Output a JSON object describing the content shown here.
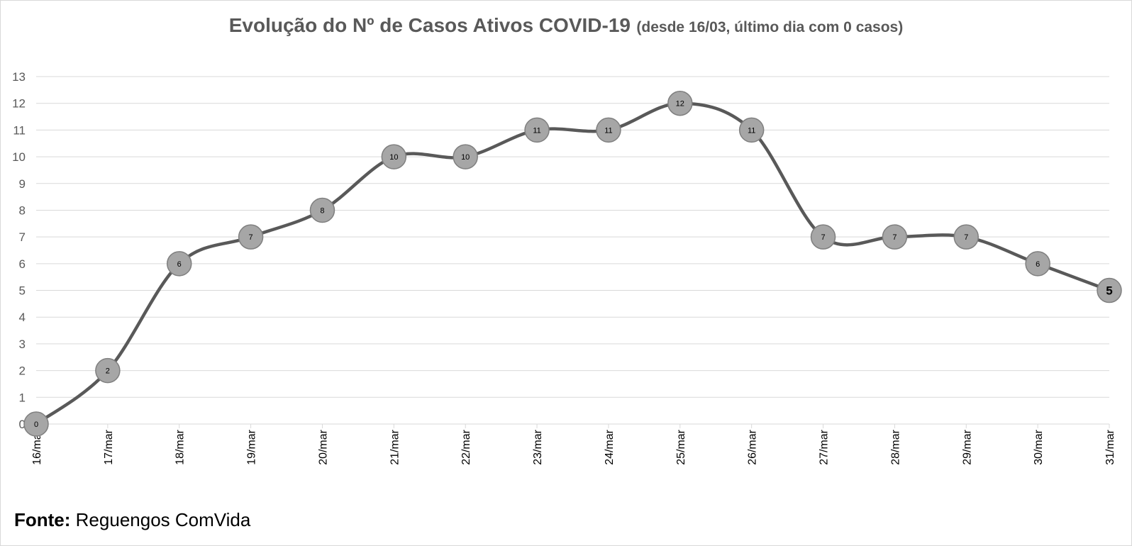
{
  "chart_data": {
    "type": "line",
    "title": "Evolução do Nº de Casos Ativos COVID-19",
    "subtitle": "(desde 16/03, último dia com 0 casos)",
    "categories": [
      "16/mar",
      "17/mar",
      "18/mar",
      "19/mar",
      "20/mar",
      "21/mar",
      "22/mar",
      "23/mar",
      "24/mar",
      "25/mar",
      "26/mar",
      "27/mar",
      "28/mar",
      "29/mar",
      "30/mar",
      "31/mar"
    ],
    "series": [
      {
        "values": [
          0,
          2,
          6,
          7,
          8,
          10,
          10,
          11,
          11,
          12,
          11,
          7,
          7,
          7,
          6,
          5
        ]
      }
    ],
    "ylim": [
      0,
      13
    ],
    "yticks": [
      0,
      1,
      2,
      3,
      4,
      5,
      6,
      7,
      8,
      9,
      10,
      11,
      12,
      13
    ],
    "smooth": true,
    "grid": true,
    "data_labels": true,
    "colors": {
      "line": "#595959",
      "marker_fill": "#a6a6a6",
      "marker_stroke": "#7f7f7f",
      "grid": "#d9d9d9",
      "text": "#595959"
    }
  },
  "source": {
    "label": "Fonte:",
    "text": "Reguengos ComVida"
  }
}
